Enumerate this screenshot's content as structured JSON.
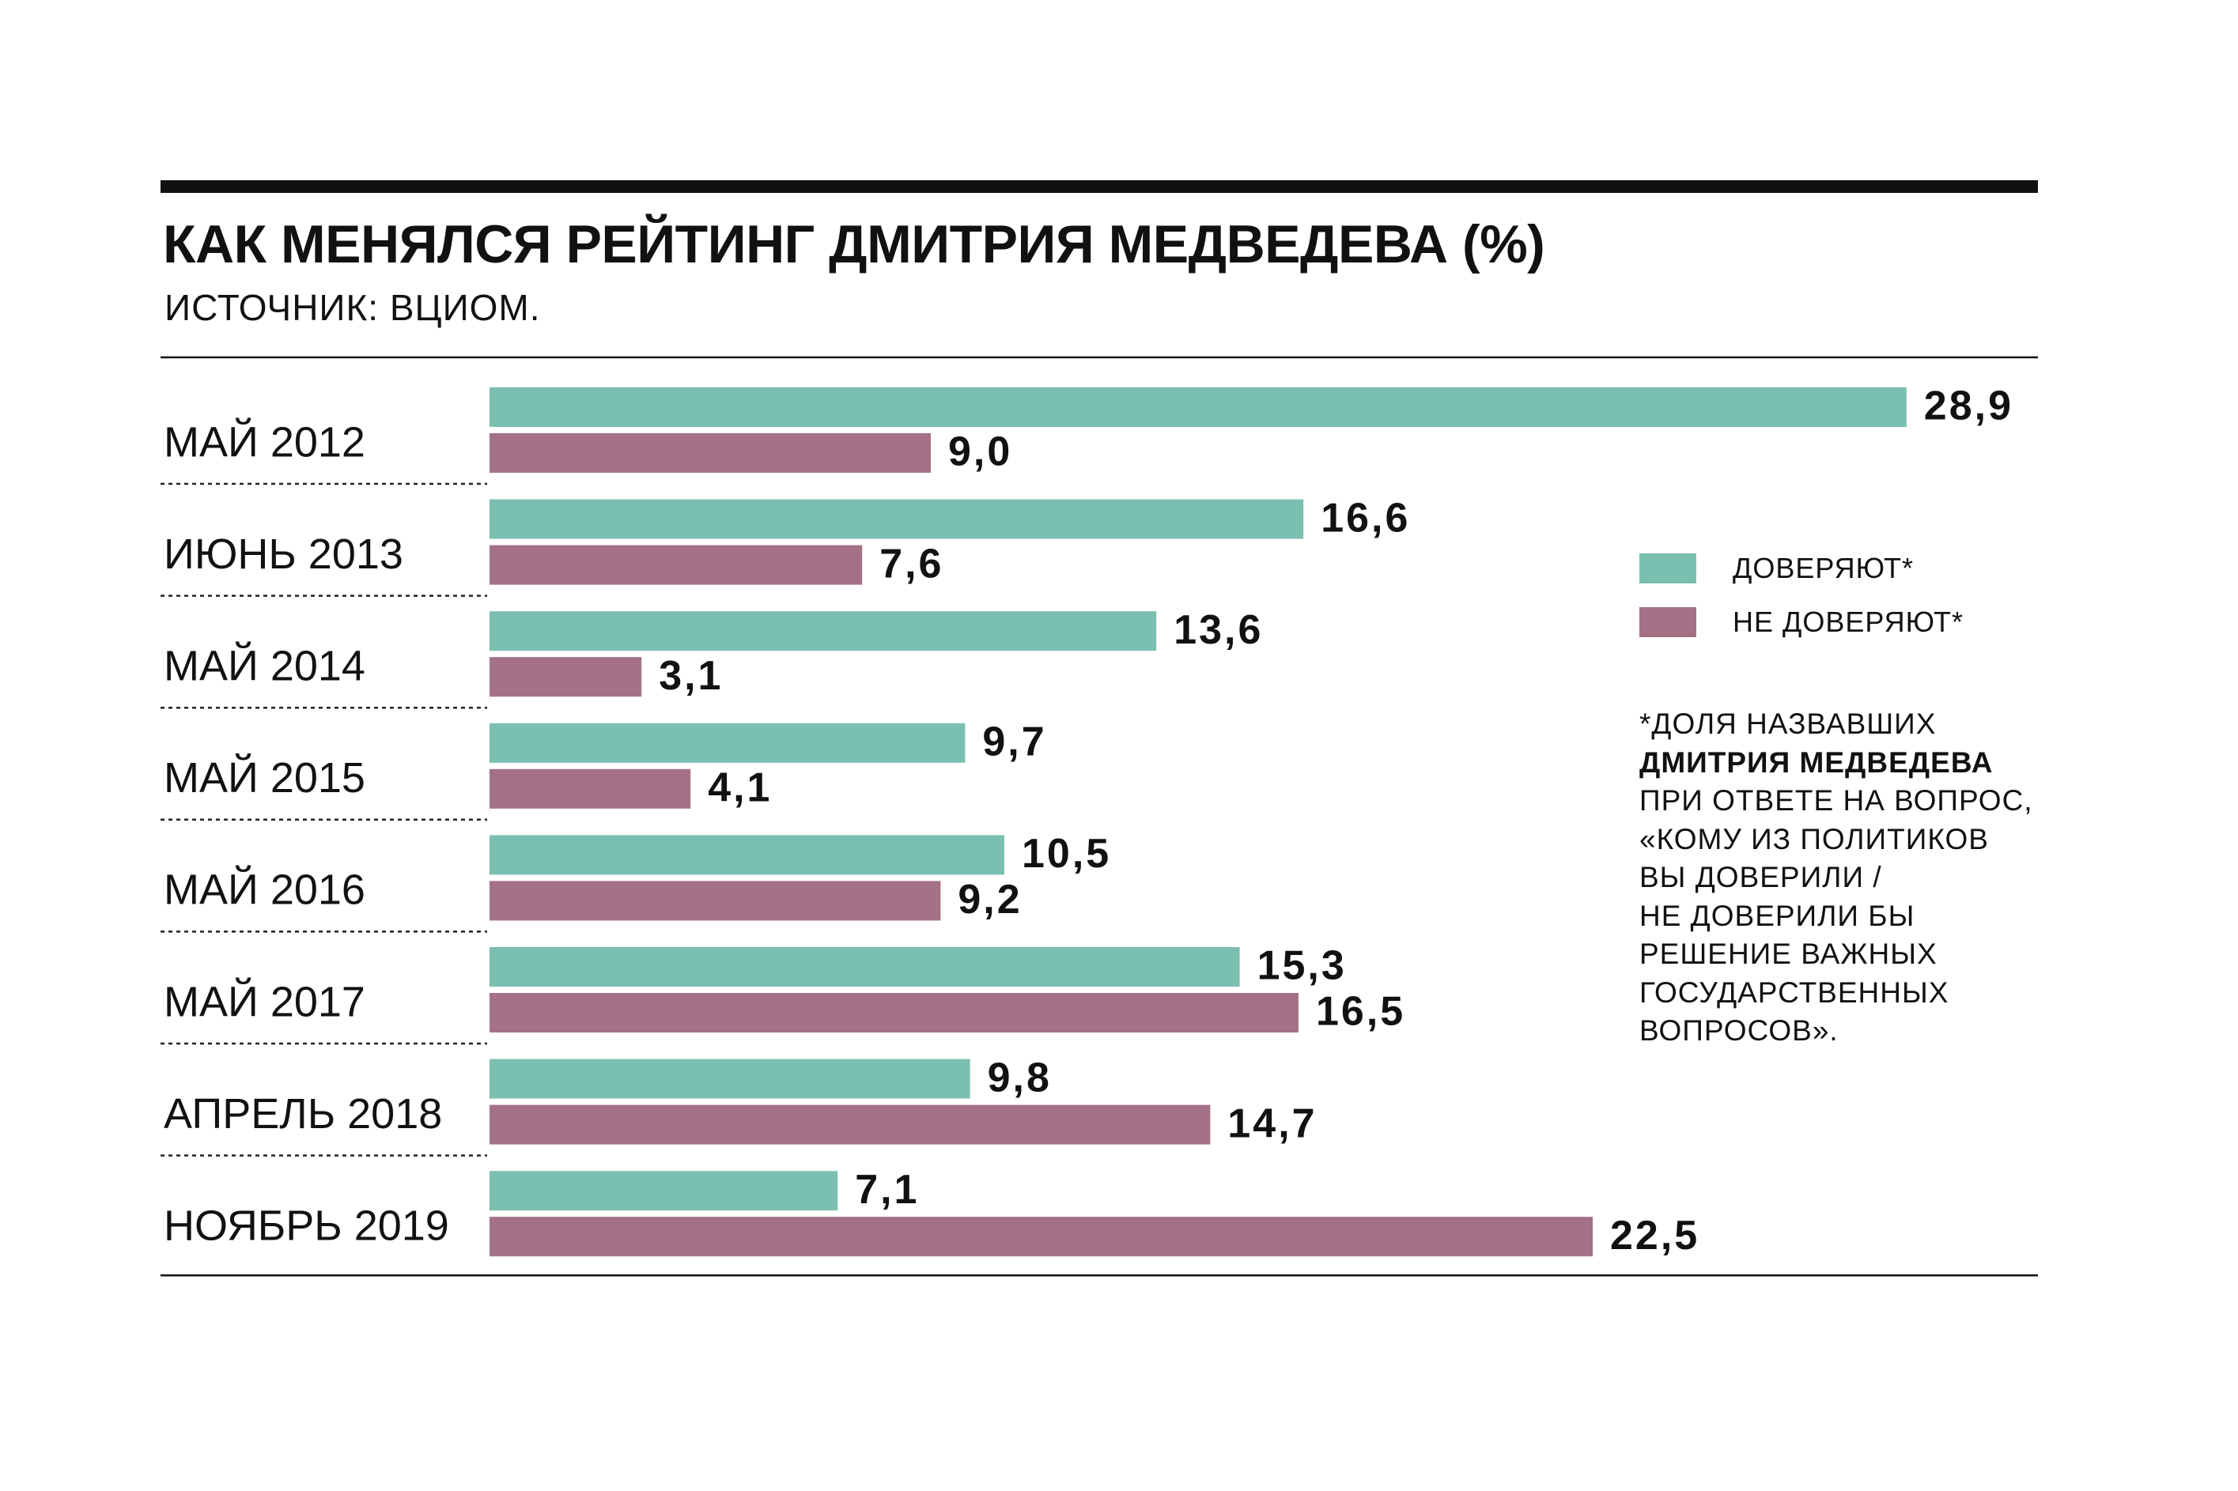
{
  "title": "КАК МЕНЯЛСЯ РЕЙТИНГ ДМИТРИЯ МЕДВЕДЕВА (%)",
  "subtitle": "ИСТОЧНИК: ВЦИОМ.",
  "colors": {
    "trust": "#7bbfb0",
    "distrust": "#a47186",
    "text": "#111111"
  },
  "legend": {
    "placement": "right",
    "trust": "ДОВЕРЯЮТ*",
    "distrust": "НЕ ДОВЕРЯЮТ*"
  },
  "footnote": {
    "line1": "*ДОЛЯ НАЗВАВШИХ",
    "line2": "ДМИТРИЯ МЕДВЕДЕВА",
    "line3": "ПРИ ОТВЕТЕ НА ВОПРОС,",
    "line4": "«КОМУ ИЗ ПОЛИТИКОВ",
    "line5": "ВЫ ДОВЕРИЛИ /",
    "line6": "НЕ ДОВЕРИЛИ БЫ",
    "line7": "РЕШЕНИЕ ВАЖНЫХ",
    "line8": "ГОСУДАРСТВЕННЫХ",
    "line9": "ВОПРОСОВ»."
  },
  "chart_data": {
    "type": "bar",
    "orientation": "horizontal",
    "title": "КАК МЕНЯЛСЯ РЕЙТИНГ ДМИТРИЯ МЕДВЕДЕВА (%)",
    "subtitle": "ИСТОЧНИК: ВЦИОМ.",
    "categories": [
      "МАЙ 2012",
      "ИЮНЬ 2013",
      "МАЙ 2014",
      "МАЙ 2015",
      "МАЙ 2016",
      "МАЙ 2017",
      "АПРЕЛЬ 2018",
      "НОЯБРЬ 2019"
    ],
    "series": [
      {
        "name": "ДОВЕРЯЮТ*",
        "values": [
          28.9,
          16.6,
          13.6,
          9.7,
          10.5,
          15.3,
          9.8,
          7.1
        ],
        "labels": [
          "28,9",
          "16,6",
          "13,6",
          "9,7",
          "10,5",
          "15,3",
          "9,8",
          "7,1"
        ]
      },
      {
        "name": "НЕ ДОВЕРЯЮТ*",
        "values": [
          9.0,
          7.6,
          3.1,
          4.1,
          9.2,
          16.5,
          14.7,
          22.5
        ],
        "labels": [
          "9,0",
          "7,6",
          "3,1",
          "4,1",
          "9,2",
          "16,5",
          "14,7",
          "22,5"
        ]
      }
    ],
    "xlim": [
      0,
      28.9
    ],
    "grid": false,
    "legend_placement": "right"
  }
}
